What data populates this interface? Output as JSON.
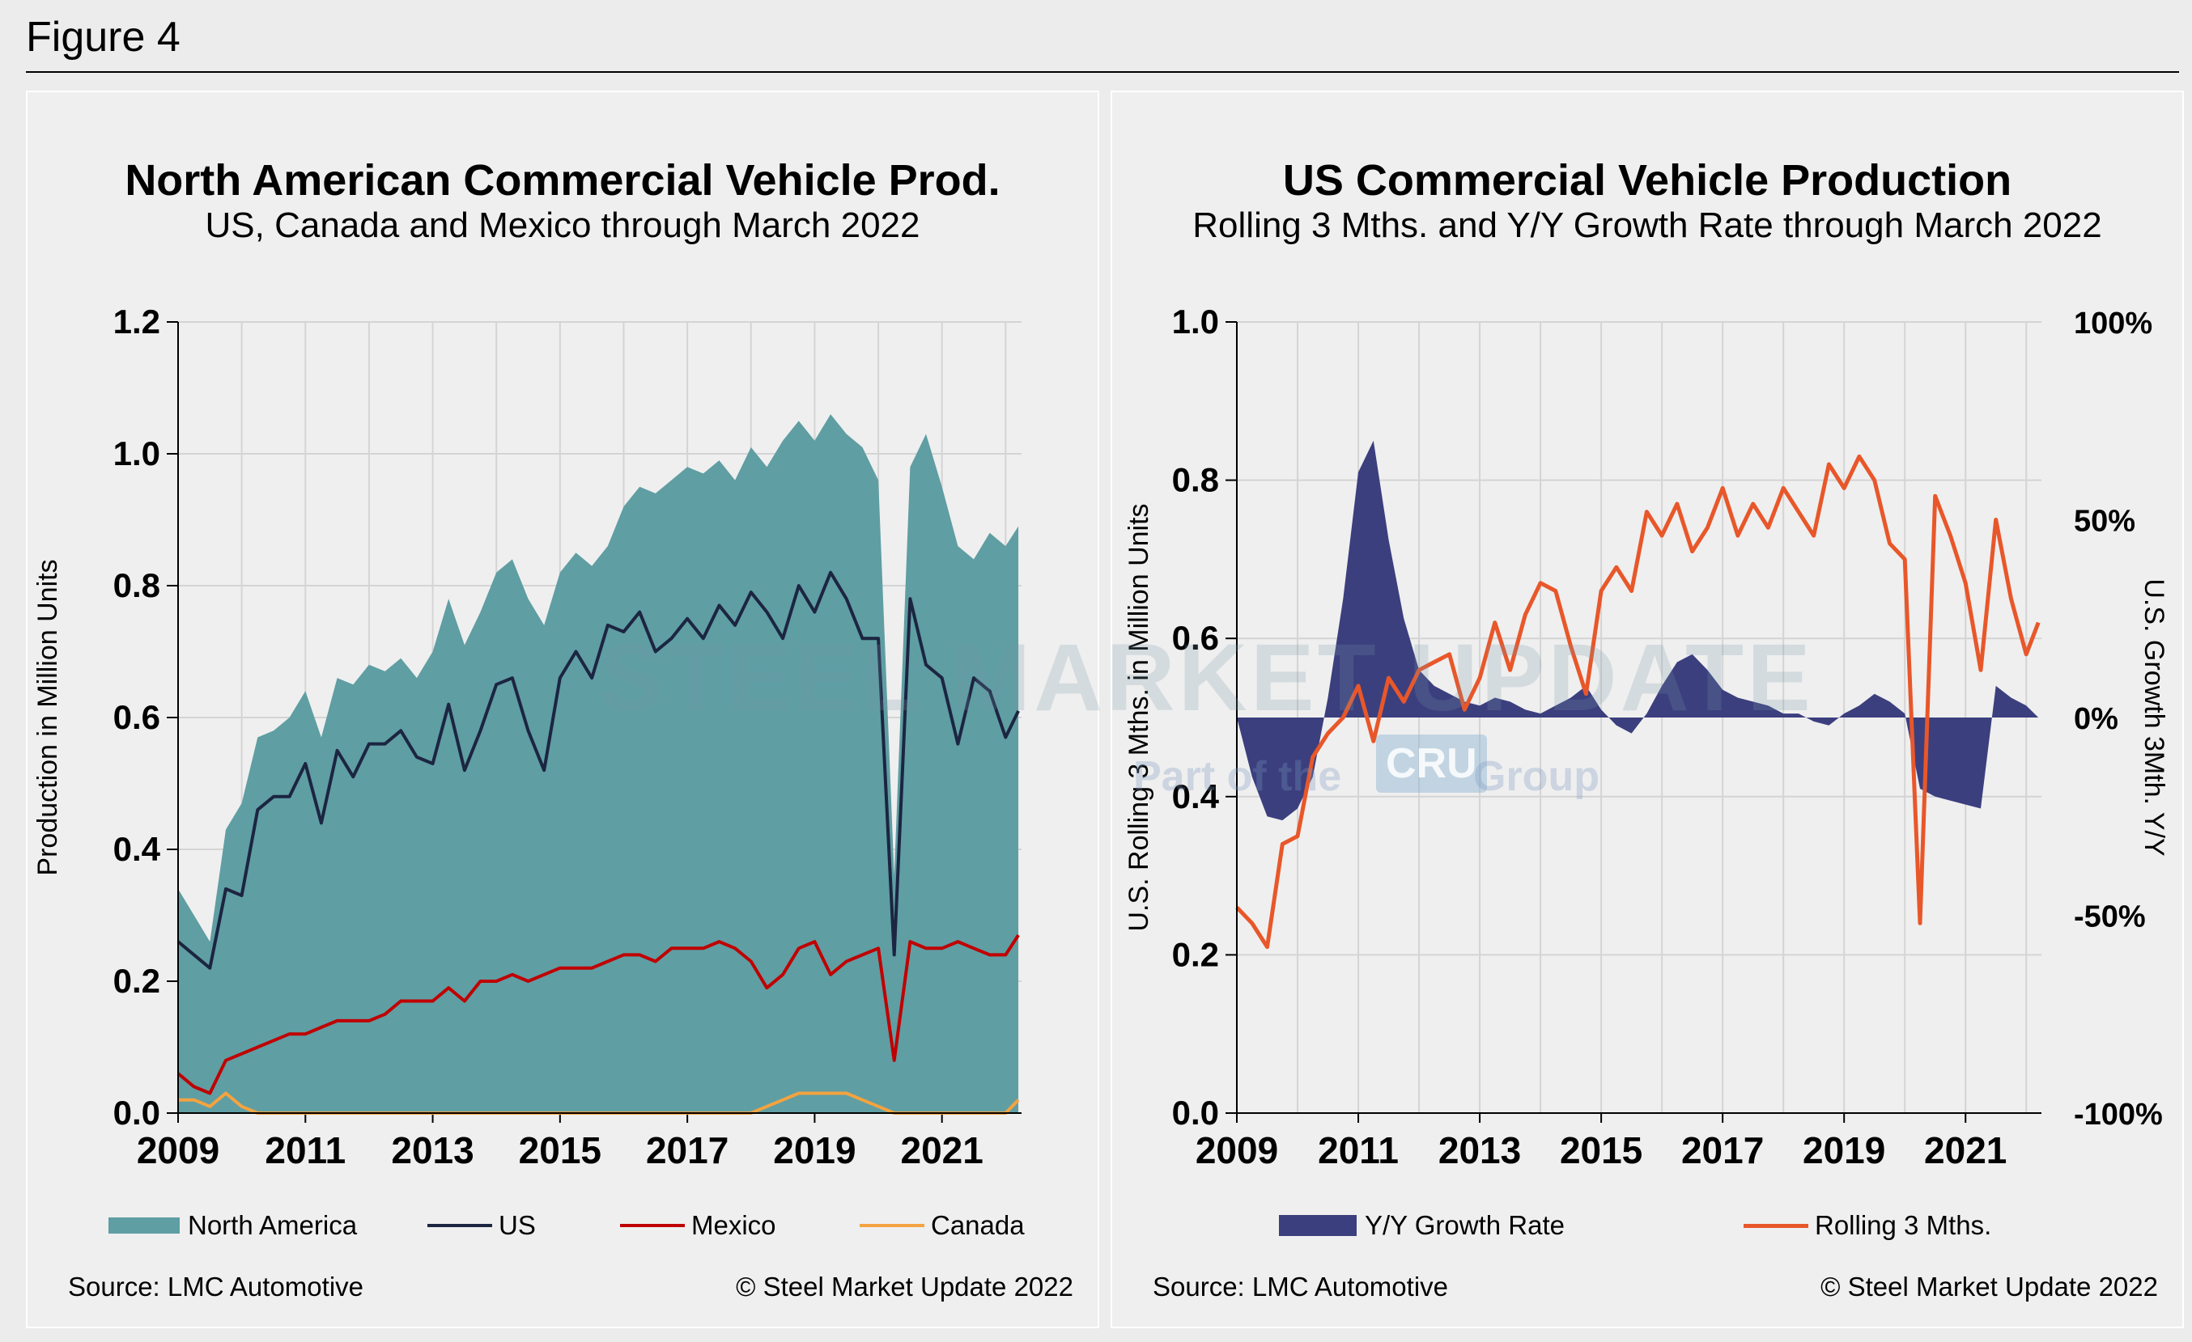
{
  "figure_label": "Figure 4",
  "left": {
    "title": "North American Commercial Vehicle Prod.",
    "subtitle": "US, Canada and Mexico through March 2022",
    "source": "Source: LMC Automotive",
    "copyright": "© Steel Market Update 2022",
    "legend": [
      "North America",
      "US",
      "Mexico",
      "Canada"
    ]
  },
  "right": {
    "title": "US Commercial Vehicle Production",
    "subtitle": "Rolling 3 Mths. and Y/Y Growth Rate through March 2022",
    "source": "Source: LMC Automotive",
    "copyright": "© Steel Market Update 2022",
    "legend": [
      "Y/Y Growth Rate",
      "Rolling 3 Mths."
    ]
  },
  "watermark": {
    "brand": "STEEL MARKET UPDATE",
    "tagline_a": "Part of the",
    "tagline_b": "CRU",
    "tagline_c": "Group"
  },
  "colors": {
    "north_america": "#5f9ea3",
    "us": "#1c2541",
    "mexico": "#c00000",
    "canada": "#f4a340",
    "growth": "#3b3f7e",
    "rolling": "#e8572a"
  },
  "chart_data": [
    {
      "type": "area",
      "title": "North American Commercial Vehicle Prod.",
      "subtitle": "US, Canada and Mexico through March 2022",
      "ylabel": "Production in Million Units",
      "xlabel": "",
      "xlim": [
        2009.0,
        2022.25
      ],
      "ylim": [
        0,
        1.2
      ],
      "yticks": [
        "0.0",
        "0.2",
        "0.4",
        "0.6",
        "0.8",
        "1.0",
        "1.2"
      ],
      "xticks": [
        "2009",
        "2011",
        "2013",
        "2015",
        "2017",
        "2019",
        "2021"
      ],
      "grid": true,
      "legend_position": "bottom",
      "x": [
        2009.0,
        2009.25,
        2009.5,
        2009.75,
        2010.0,
        2010.25,
        2010.5,
        2010.75,
        2011.0,
        2011.25,
        2011.5,
        2011.75,
        2012.0,
        2012.25,
        2012.5,
        2012.75,
        2013.0,
        2013.25,
        2013.5,
        2013.75,
        2014.0,
        2014.25,
        2014.5,
        2014.75,
        2015.0,
        2015.25,
        2015.5,
        2015.75,
        2016.0,
        2016.25,
        2016.5,
        2016.75,
        2017.0,
        2017.25,
        2017.5,
        2017.75,
        2018.0,
        2018.25,
        2018.5,
        2018.75,
        2019.0,
        2019.25,
        2019.5,
        2019.75,
        2020.0,
        2020.25,
        2020.5,
        2020.75,
        2021.0,
        2021.25,
        2021.5,
        2021.75,
        2022.0,
        2022.2
      ],
      "series": [
        {
          "name": "North America",
          "chart": "area",
          "values": [
            0.34,
            0.3,
            0.26,
            0.43,
            0.47,
            0.57,
            0.58,
            0.6,
            0.64,
            0.57,
            0.66,
            0.65,
            0.68,
            0.67,
            0.69,
            0.66,
            0.7,
            0.78,
            0.71,
            0.76,
            0.82,
            0.84,
            0.78,
            0.74,
            0.82,
            0.85,
            0.83,
            0.86,
            0.92,
            0.95,
            0.94,
            0.96,
            0.98,
            0.97,
            0.99,
            0.96,
            1.01,
            0.98,
            1.02,
            1.05,
            1.02,
            1.06,
            1.03,
            1.01,
            0.96,
            0.36,
            0.98,
            1.03,
            0.95,
            0.86,
            0.84,
            0.88,
            0.86,
            0.89
          ]
        },
        {
          "name": "US",
          "chart": "line",
          "values": [
            0.26,
            0.24,
            0.22,
            0.34,
            0.33,
            0.46,
            0.48,
            0.48,
            0.53,
            0.44,
            0.55,
            0.51,
            0.56,
            0.56,
            0.58,
            0.54,
            0.53,
            0.62,
            0.52,
            0.58,
            0.65,
            0.66,
            0.58,
            0.52,
            0.66,
            0.7,
            0.66,
            0.74,
            0.73,
            0.76,
            0.7,
            0.72,
            0.75,
            0.72,
            0.77,
            0.74,
            0.79,
            0.76,
            0.72,
            0.8,
            0.76,
            0.82,
            0.78,
            0.72,
            0.72,
            0.24,
            0.78,
            0.68,
            0.66,
            0.56,
            0.66,
            0.64,
            0.57,
            0.61
          ]
        },
        {
          "name": "Mexico",
          "chart": "line",
          "values": [
            0.06,
            0.04,
            0.03,
            0.08,
            0.09,
            0.1,
            0.11,
            0.12,
            0.12,
            0.13,
            0.14,
            0.14,
            0.14,
            0.15,
            0.17,
            0.17,
            0.17,
            0.19,
            0.17,
            0.2,
            0.2,
            0.21,
            0.2,
            0.21,
            0.22,
            0.22,
            0.22,
            0.23,
            0.24,
            0.24,
            0.23,
            0.25,
            0.25,
            0.25,
            0.26,
            0.25,
            0.23,
            0.19,
            0.21,
            0.25,
            0.26,
            0.21,
            0.23,
            0.24,
            0.25,
            0.08,
            0.26,
            0.25,
            0.25,
            0.26,
            0.25,
            0.24,
            0.24,
            0.27
          ]
        },
        {
          "name": "Canada",
          "chart": "line",
          "values": [
            0.02,
            0.02,
            0.01,
            0.03,
            0.01,
            0,
            0,
            0,
            0,
            0,
            0,
            0,
            0,
            0,
            0,
            0,
            0,
            0,
            0,
            0,
            0,
            0,
            0,
            0,
            0,
            0,
            0,
            0,
            0,
            0,
            0,
            0,
            0,
            0,
            0,
            0,
            0,
            0.01,
            0.02,
            0.03,
            0.03,
            0.03,
            0.03,
            0.02,
            0.01,
            0,
            0,
            0,
            0,
            0,
            0,
            0,
            0,
            0.02
          ]
        }
      ]
    },
    {
      "type": "line",
      "title": "US Commercial Vehicle Production",
      "subtitle": "Rolling 3 Mths. and Y/Y Growth Rate through March 2022",
      "ylabel": "U.S. Rolling 3 Mths. in Million Units",
      "y2label": "U.S. Growth 3Mth. Y/Y",
      "xlabel": "",
      "xlim": [
        2009.0,
        2022.25
      ],
      "ylim": [
        0,
        1.0
      ],
      "y2lim": [
        -100,
        100
      ],
      "yticks": [
        "0.0",
        "0.2",
        "0.4",
        "0.6",
        "0.8",
        "1.0"
      ],
      "y2ticks": [
        "-100%",
        "-50%",
        "0%",
        "50%",
        "100%"
      ],
      "xticks": [
        "2009",
        "2011",
        "2013",
        "2015",
        "2017",
        "2019",
        "2021"
      ],
      "grid": true,
      "legend_position": "bottom",
      "x": [
        2009.0,
        2009.25,
        2009.5,
        2009.75,
        2010.0,
        2010.25,
        2010.5,
        2010.75,
        2011.0,
        2011.25,
        2011.5,
        2011.75,
        2012.0,
        2012.25,
        2012.5,
        2012.75,
        2013.0,
        2013.25,
        2013.5,
        2013.75,
        2014.0,
        2014.25,
        2014.5,
        2014.75,
        2015.0,
        2015.25,
        2015.5,
        2015.75,
        2016.0,
        2016.25,
        2016.5,
        2016.75,
        2017.0,
        2017.25,
        2017.5,
        2017.75,
        2018.0,
        2018.25,
        2018.5,
        2018.75,
        2019.0,
        2019.25,
        2019.5,
        2019.75,
        2020.0,
        2020.25,
        2020.5,
        2020.75,
        2021.0,
        2021.25,
        2021.5,
        2021.75,
        2022.0,
        2022.2
      ],
      "series": [
        {
          "name": "Y/Y Growth Rate",
          "axis": "right",
          "chart": "area",
          "values": [
            0,
            -15,
            -25,
            -26,
            -23,
            -15,
            5,
            30,
            62,
            70,
            45,
            25,
            12,
            8,
            6,
            4,
            3,
            5,
            4,
            2,
            1,
            3,
            5,
            8,
            2,
            -2,
            -4,
            1,
            8,
            14,
            16,
            12,
            7,
            5,
            4,
            3,
            1,
            1,
            -1,
            -2,
            1,
            3,
            6,
            4,
            1,
            -18,
            -20,
            -21,
            -22,
            -23,
            8,
            5,
            3,
            0
          ]
        },
        {
          "name": "Rolling 3 Mths.",
          "axis": "left",
          "chart": "line",
          "values": [
            0.26,
            0.24,
            0.21,
            0.34,
            0.35,
            0.45,
            0.48,
            0.5,
            0.54,
            0.47,
            0.55,
            0.52,
            0.56,
            0.57,
            0.58,
            0.51,
            0.55,
            0.62,
            0.56,
            0.63,
            0.67,
            0.66,
            0.59,
            0.53,
            0.66,
            0.69,
            0.66,
            0.76,
            0.73,
            0.77,
            0.71,
            0.74,
            0.79,
            0.73,
            0.77,
            0.74,
            0.79,
            0.76,
            0.73,
            0.82,
            0.79,
            0.83,
            0.8,
            0.72,
            0.7,
            0.24,
            0.78,
            0.73,
            0.67,
            0.56,
            0.75,
            0.65,
            0.58,
            0.62
          ]
        }
      ]
    }
  ]
}
